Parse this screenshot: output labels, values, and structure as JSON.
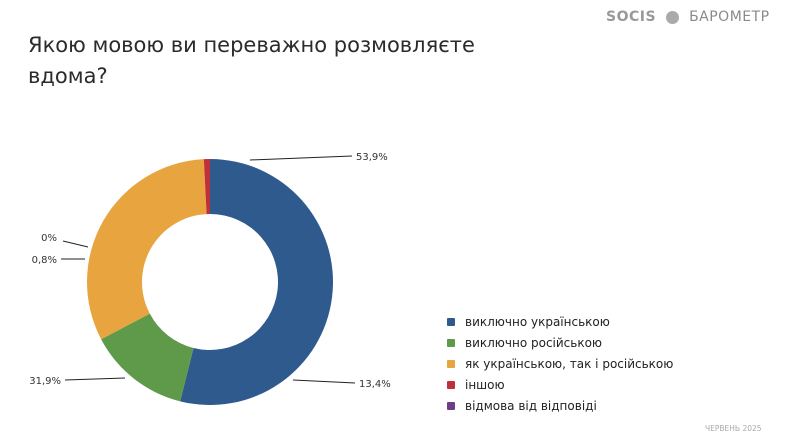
{
  "header": {
    "logo": "SOCIS",
    "product": "БАРОМЕТР"
  },
  "footer": {
    "date": "ЧЕРВЕНЬ 2025"
  },
  "chart_data": {
    "type": "pie",
    "donut": true,
    "title": "Якою мовою ви переважно розмовляєте вдома?",
    "categories": [
      "виключно українською",
      "виключно російською",
      "як українською, так і російською",
      "іншою",
      "відмова від відповіді"
    ],
    "values": [
      53.9,
      13.4,
      31.9,
      0.8,
      0
    ],
    "labels": [
      "53,9%",
      "13,4%",
      "31,9%",
      "0,8%",
      "0%"
    ],
    "colors": [
      "#2e5a8e",
      "#5e9a4a",
      "#e8a43f",
      "#c0303a",
      "#6f3f86"
    ],
    "legend_position": "right"
  }
}
